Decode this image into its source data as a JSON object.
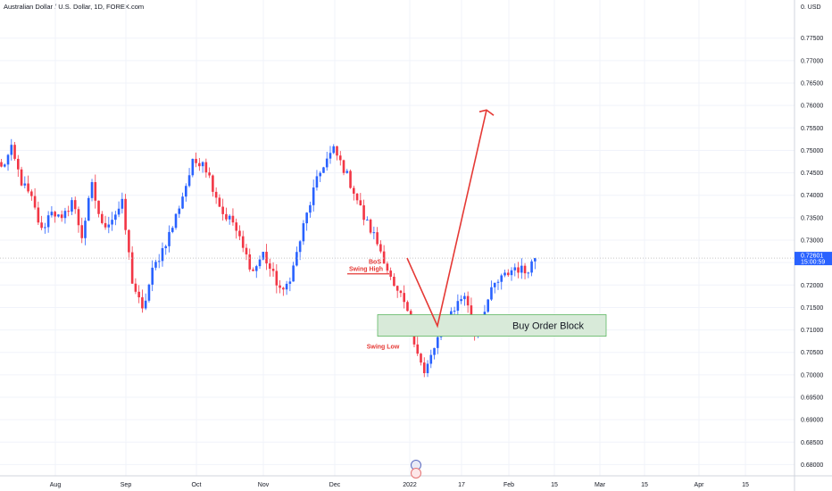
{
  "header": {
    "symbol_title": "Australian Dollar / U.S. Dollar, 1D, FOREX.com",
    "currency_label": "USD",
    "last_price": "0.72601",
    "countdown": "15:00:59"
  },
  "colors": {
    "up": "#2962ff",
    "down": "#f23645",
    "annotation": "#e53935",
    "order_block_fill": "#d8ead9",
    "order_block_border": "#4caf50",
    "price_line": "#c8c8c8",
    "price_badge": "#2962ff"
  },
  "chart_data": {
    "type": "candlestick",
    "title": "Australian Dollar / U.S. Dollar, 1D, FOREX.com",
    "ylim": [
      0.6775,
      0.7835
    ],
    "y_ticks": [
      "0.68000",
      "0.68500",
      "0.69000",
      "0.69500",
      "0.70000",
      "0.70500",
      "0.71000",
      "0.71500",
      "0.72000",
      "0.72500",
      "0.73000",
      "0.73500",
      "0.74000",
      "0.74500",
      "0.75000",
      "0.75500",
      "0.76000",
      "0.76500",
      "0.77000",
      "0.77500"
    ],
    "x_ticks": [
      "Aug",
      "Sep",
      "Oct",
      "Nov",
      "Dec",
      "2022",
      "17",
      "Feb",
      "15",
      "Mar",
      "15",
      "Apr",
      "15"
    ],
    "grid": true,
    "anchors": [
      0.746,
      0.75,
      0.743,
      0.739,
      0.732,
      0.737,
      0.734,
      0.739,
      0.731,
      0.742,
      0.733,
      0.735,
      0.738,
      0.721,
      0.714,
      0.723,
      0.728,
      0.733,
      0.74,
      0.747,
      0.748,
      0.742,
      0.736,
      0.734,
      0.728,
      0.723,
      0.727,
      0.722,
      0.718,
      0.724,
      0.733,
      0.741,
      0.747,
      0.75,
      0.746,
      0.741,
      0.735,
      0.731,
      0.726,
      0.719,
      0.716,
      0.708,
      0.7,
      0.706,
      0.712,
      0.715,
      0.718,
      0.709,
      0.715,
      0.72,
      0.722,
      0.724,
      0.723,
      0.726
    ],
    "annotations": {
      "bos": "BoS",
      "swing_high": "Swing High",
      "swing_low": "Swing Low",
      "order_block": "Buy Order Block",
      "order_block_range": [
        0.7086,
        0.7134
      ],
      "swing_high_level": 0.7225,
      "swing_low_level": 0.709,
      "projection": [
        0.72601,
        0.7109,
        0.759
      ]
    }
  }
}
